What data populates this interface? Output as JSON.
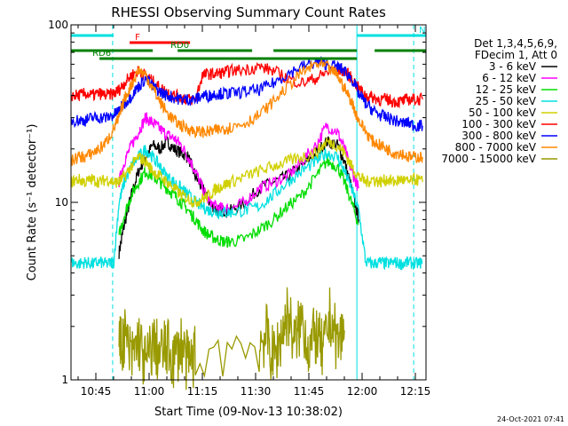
{
  "chart_data": {
    "type": "line",
    "title": "RHESSI Observing Summary Count Rates",
    "xlabel": "Start Time (09-Nov-13 10:38:02)",
    "ylabel": "Count Rate (s⁻¹ detector⁻¹)",
    "ylim": [
      1,
      100
    ],
    "yscale": "log",
    "xlim_minutes": [
      -0.03,
      99.97
    ],
    "x_ticks": [
      {
        "label": "10:45",
        "t": 6.97
      },
      {
        "label": "11:00",
        "t": 21.97
      },
      {
        "label": "11:15",
        "t": 36.97
      },
      {
        "label": "11:30",
        "t": 51.97
      },
      {
        "label": "11:45",
        "t": 66.97
      },
      {
        "label": "12:00",
        "t": 81.97
      },
      {
        "label": "12:15",
        "t": 96.97
      }
    ],
    "y_ticks": [
      {
        "label": "1",
        "v": 1
      },
      {
        "label": "10",
        "v": 10
      },
      {
        "label": "100",
        "v": 100
      }
    ],
    "legend": {
      "placement": "right",
      "header": [
        "Det 1,3,4,5,6,9,",
        "FDecim 1, Att 0"
      ],
      "entries": [
        {
          "label": "3 - 6 keV",
          "color": "#000000"
        },
        {
          "label": "6 - 12 keV",
          "color": "#ff00ff"
        },
        {
          "label": "12 - 25 keV",
          "color": "#00dd00"
        },
        {
          "label": "25 - 50 keV",
          "color": "#00e0e0"
        },
        {
          "label": "50 - 100 keV",
          "color": "#d0d000"
        },
        {
          "label": "100 - 300 keV",
          "color": "#ff0000"
        },
        {
          "label": "300 - 800 keV",
          "color": "#0000ff"
        },
        {
          "label": "800 - 7000 keV",
          "color": "#ff8800"
        },
        {
          "label": "7000 - 15000 keV",
          "color": "#999900"
        }
      ]
    },
    "flag_bars": [
      {
        "label": "N",
        "color": "#00e0e0",
        "segments": [
          [
            -0.03,
            12
          ],
          [
            80.5,
            99.97
          ]
        ]
      },
      {
        "label": "F",
        "color": "#ff0000",
        "segments": [
          [
            16.5,
            33.5
          ]
        ]
      },
      {
        "label": "RD0",
        "color": "#008000",
        "segments": [
          [
            -0.03,
            23
          ],
          [
            30,
            51
          ],
          [
            57,
            80.5
          ],
          [
            85.5,
            99.97
          ]
        ]
      },
      {
        "label": "RD6",
        "color": "#008000",
        "segments": [
          [
            8,
            80.5
          ]
        ]
      }
    ],
    "vertical_markers_minutes": [
      11.7,
      80.5,
      96.5
    ],
    "series": [
      {
        "name": "3 - 6 keV",
        "color": "#000000",
        "x": [
          13.5,
          15,
          17,
          19,
          21,
          23,
          25,
          27,
          29,
          31,
          33,
          35,
          37,
          39,
          41,
          43,
          45,
          49,
          53,
          57,
          61,
          65,
          69,
          72,
          75,
          77,
          79,
          81
        ],
        "y": [
          5.2,
          7.5,
          11,
          15,
          18,
          21,
          20,
          22,
          20,
          19,
          18,
          14,
          12,
          10,
          9,
          9,
          9,
          10,
          12,
          13,
          14,
          16,
          19,
          22,
          21,
          17,
          12,
          8
        ]
      },
      {
        "name": "6 - 12 keV",
        "color": "#ff00ff",
        "x": [
          13.5,
          15,
          17,
          19,
          21,
          23,
          25,
          27,
          29,
          31,
          33,
          35,
          37,
          39,
          41,
          43,
          45,
          49,
          53,
          57,
          61,
          65,
          69,
          72,
          75,
          77,
          79,
          81
        ],
        "y": [
          13,
          17,
          21,
          25,
          30,
          28,
          26,
          24,
          23,
          21,
          18,
          15,
          12,
          10,
          9.4,
          9.2,
          9.2,
          10,
          12,
          13,
          14,
          17,
          21,
          27,
          25,
          20,
          15,
          12
        ]
      },
      {
        "name": "12 - 25 keV",
        "color": "#00dd00",
        "x": [
          13.5,
          15,
          17,
          19,
          21,
          23,
          25,
          27,
          29,
          31,
          33,
          35,
          37,
          39,
          41,
          43,
          45,
          49,
          53,
          57,
          61,
          65,
          69,
          72,
          75,
          77,
          79,
          81
        ],
        "y": [
          6.5,
          8.5,
          11,
          13,
          15,
          14,
          13,
          12,
          11,
          10,
          9,
          8,
          7,
          6.5,
          6.2,
          6,
          6,
          6.2,
          7,
          8,
          9.5,
          11,
          14,
          17,
          16,
          13,
          10,
          7.5
        ]
      },
      {
        "name": "25 - 50 keV",
        "color": "#00e0e0",
        "x": [
          0,
          2,
          4,
          6,
          8,
          10,
          12,
          13.5,
          15,
          17,
          19,
          21,
          23,
          25,
          27,
          29,
          31,
          33,
          35,
          37,
          39,
          41,
          43,
          45,
          49,
          53,
          57,
          61,
          65,
          69,
          72,
          75,
          77,
          79,
          81,
          83,
          85,
          87,
          89,
          91,
          93,
          95,
          97,
          99
        ],
        "y": [
          4.6,
          4.5,
          4.6,
          4.5,
          4.6,
          4.5,
          4.6,
          10,
          13,
          16,
          18,
          20,
          18,
          16,
          14,
          13,
          12,
          11,
          10,
          9.5,
          9,
          8.8,
          8.8,
          8.8,
          9,
          9.5,
          11,
          13,
          15,
          17,
          19,
          18,
          15,
          12,
          9,
          4.6,
          4.5,
          4.6,
          4.5,
          4.6,
          4.5,
          4.6,
          4.5,
          4.6
        ]
      },
      {
        "name": "50 - 100 keV",
        "color": "#d0d000",
        "x": [
          0,
          2,
          4,
          6,
          8,
          10,
          12,
          13.5,
          15,
          17,
          19,
          21,
          23,
          25,
          27,
          29,
          31,
          33,
          35,
          37,
          39,
          41,
          43,
          45,
          49,
          53,
          57,
          61,
          65,
          69,
          72,
          75,
          77,
          79,
          81,
          83,
          85,
          87,
          89,
          91,
          93,
          95,
          97,
          99
        ],
        "y": [
          13,
          13.5,
          13,
          13.5,
          13,
          13.5,
          13,
          13,
          14,
          16,
          18,
          17,
          15,
          14,
          13,
          12,
          11,
          10.5,
          10,
          10.5,
          11,
          12,
          12.5,
          13,
          14,
          15,
          16,
          17,
          18,
          19,
          22,
          21,
          19,
          16,
          14,
          13,
          13.5,
          13,
          13.5,
          13,
          13.5,
          13,
          13.5,
          13
        ]
      },
      {
        "name": "100 - 300 keV",
        "color": "#ff0000",
        "x": [
          0,
          2,
          4,
          6,
          8,
          10,
          12,
          13.5,
          15,
          17,
          19,
          21,
          23,
          25,
          27,
          29,
          31,
          33,
          35,
          37,
          39,
          41,
          43,
          45,
          49,
          53,
          57,
          61,
          65,
          69,
          72,
          75,
          77,
          79,
          81,
          83,
          85,
          87,
          89,
          91,
          93,
          95,
          97,
          99
        ],
        "y": [
          40,
          40,
          41,
          40,
          41,
          40,
          41,
          43,
          47,
          52,
          55,
          52,
          48,
          44,
          42,
          40,
          39,
          38,
          38,
          52,
          53,
          53,
          54,
          55,
          56,
          58,
          55,
          50,
          47,
          50,
          54,
          56,
          55,
          50,
          44,
          40,
          39,
          38,
          38,
          37,
          37,
          38,
          38,
          38
        ]
      },
      {
        "name": "300 - 800 keV",
        "color": "#0000ff",
        "x": [
          0,
          2,
          4,
          6,
          8,
          10,
          12,
          13.5,
          15,
          17,
          19,
          21,
          23,
          25,
          27,
          29,
          31,
          33,
          35,
          37,
          39,
          41,
          43,
          45,
          49,
          53,
          57,
          61,
          65,
          69,
          72,
          75,
          77,
          79,
          81,
          83,
          85,
          87,
          89,
          91,
          93,
          95,
          97,
          99
        ],
        "y": [
          29,
          29,
          29,
          30,
          30,
          30,
          31,
          33,
          36,
          40,
          45,
          50,
          45,
          42,
          40,
          39,
          38,
          38,
          38,
          40,
          40,
          41,
          41,
          41,
          42,
          43,
          47,
          53,
          58,
          62,
          60,
          58,
          55,
          50,
          41,
          36,
          33,
          31,
          30,
          29,
          28,
          28,
          27,
          27
        ]
      },
      {
        "name": "800 - 7000 keV",
        "color": "#ff8800",
        "x": [
          0,
          2,
          4,
          6,
          8,
          10,
          12,
          13.5,
          15,
          17,
          19,
          21,
          23,
          25,
          27,
          29,
          31,
          33,
          35,
          37,
          39,
          41,
          43,
          45,
          49,
          53,
          57,
          61,
          65,
          69,
          72,
          75,
          77,
          79,
          81,
          83,
          85,
          87,
          89,
          91,
          93,
          95,
          97,
          99
        ],
        "y": [
          17,
          18,
          18,
          19,
          20,
          22,
          26,
          30,
          38,
          46,
          56,
          52,
          44,
          37,
          32,
          29,
          27,
          26,
          25,
          25,
          25,
          25.5,
          26,
          26.5,
          28,
          31,
          37,
          45,
          54,
          60,
          58,
          52,
          44,
          37,
          29,
          25,
          22,
          21,
          20,
          19,
          19,
          18,
          18,
          18
        ]
      },
      {
        "name": "7000 - 15000 keV",
        "color": "#999900",
        "x": [
          13.5,
          15,
          17,
          19,
          21,
          23,
          25,
          27,
          29,
          31,
          33,
          35,
          53,
          55,
          57,
          59,
          61,
          63,
          65,
          67,
          69,
          71,
          73,
          75,
          77
        ],
        "y": [
          1.5,
          1.8,
          1.3,
          1.7,
          1.2,
          1.6,
          1.4,
          1.5,
          1.3,
          1.6,
          1.2,
          1.4,
          1.6,
          1.8,
          1.3,
          1.7,
          2.4,
          1.6,
          2.2,
          1.5,
          1.8,
          1.4,
          2.3,
          1.6,
          1.9
        ]
      }
    ]
  },
  "footer": {
    "timestamp": "24-Oct-2021 07:41"
  }
}
